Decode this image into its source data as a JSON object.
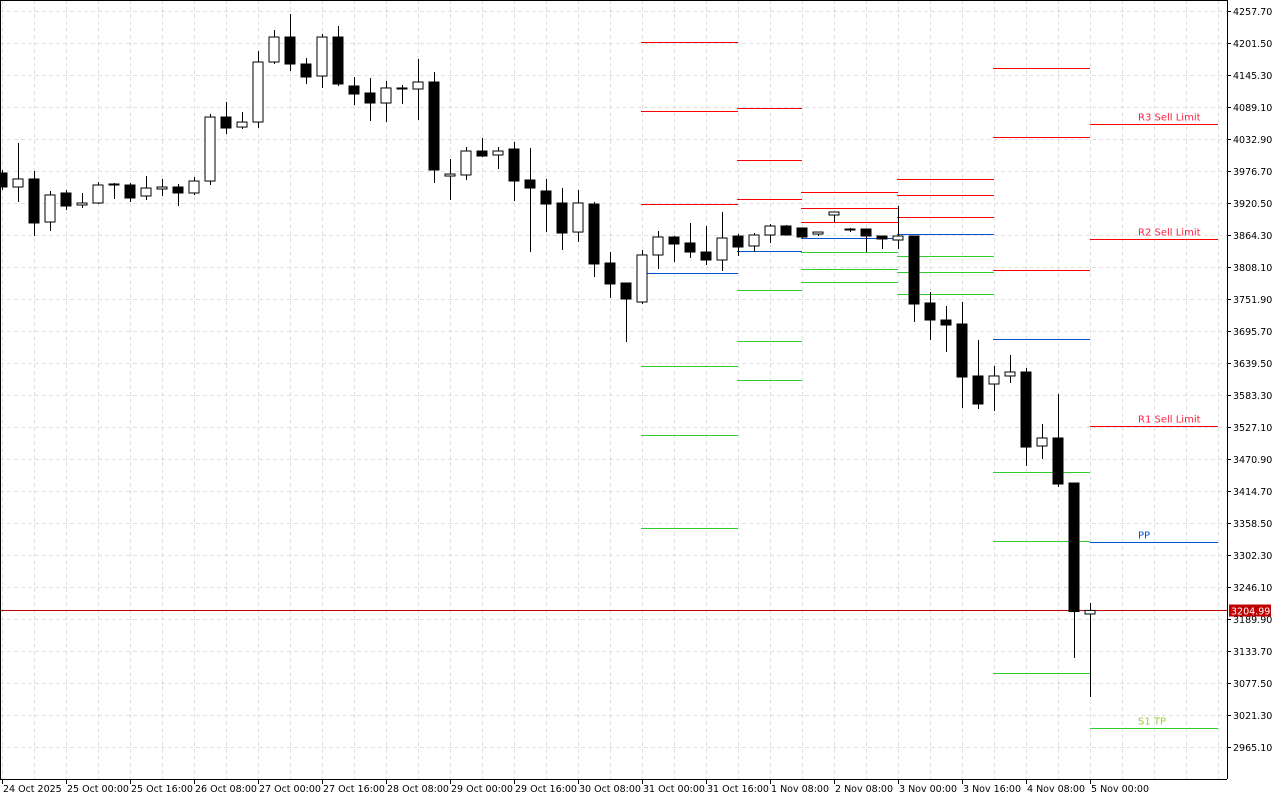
{
  "chart_data": {
    "type": "candlestick",
    "title": "",
    "xlabel": "",
    "ylabel": "",
    "ylim": [
      2908.9,
      4257.7
    ],
    "grid": true,
    "y_ticks": [
      "4257.70",
      "4201.50",
      "4145.30",
      "4089.10",
      "4032.90",
      "3976.70",
      "3920.50",
      "3864.30",
      "3808.10",
      "3751.90",
      "3695.70",
      "3639.50",
      "3583.30",
      "3527.10",
      "3470.90",
      "3414.70",
      "3358.50",
      "3302.30",
      "3246.10",
      "3189.90",
      "3133.70",
      "3077.50",
      "3021.30",
      "2965.10"
    ],
    "x_ticks": [
      "24 Oct 2025",
      "25 Oct 00:00",
      "25 Oct 16:00",
      "26 Oct 08:00",
      "27 Oct 00:00",
      "27 Oct 16:00",
      "28 Oct 08:00",
      "29 Oct 00:00",
      "29 Oct 16:00",
      "30 Oct 08:00",
      "31 Oct 00:00",
      "31 Oct 16:00",
      "1 Nov 08:00",
      "2 Nov 08:00",
      "3 Nov 00:00",
      "3 Nov 16:00",
      "4 Nov 08:00",
      "5 Nov 00:00"
    ],
    "candles_ohlc": [
      [
        3973.2,
        3978.5,
        3943.3,
        3948.6
      ],
      [
        3948.6,
        4025.9,
        3922.3,
        3962.7
      ],
      [
        3962.7,
        3976.7,
        3862.5,
        3885.4
      ],
      [
        3887.1,
        3941.6,
        3871.3,
        3934.6
      ],
      [
        3938.1,
        3943.3,
        3908.2,
        3915.2
      ],
      [
        3917.0,
        3938.1,
        3911.7,
        3920.5
      ],
      [
        3920.5,
        3957.4,
        3918.7,
        3952.1
      ],
      [
        3952.1,
        3955.6,
        3927.5,
        3953.9
      ],
      [
        3952.1,
        3955.6,
        3922.3,
        3929.3
      ],
      [
        3932.8,
        3967.9,
        3925.8,
        3946.8
      ],
      [
        3945.1,
        3962.7,
        3932.8,
        3948.6
      ],
      [
        3948.6,
        3953.9,
        3915.2,
        3938.1
      ],
      [
        3938.1,
        3966.2,
        3934.6,
        3959.1
      ],
      [
        3959.1,
        4076.8,
        3952.1,
        4071.5
      ],
      [
        4071.5,
        4097.9,
        4041.7,
        4052.2
      ],
      [
        4053.9,
        4080.3,
        4050.4,
        4062.7
      ],
      [
        4062.7,
        4187.5,
        4052.2,
        4168.1
      ],
      [
        4168.1,
        4224.3,
        4164.6,
        4212.0
      ],
      [
        4212.0,
        4252.4,
        4152.3,
        4164.6
      ],
      [
        4164.6,
        4175.2,
        4129.5,
        4141.8
      ],
      [
        4143.5,
        4217.3,
        4122.5,
        4212.0
      ],
      [
        4212.0,
        4231.4,
        4126.0,
        4129.5
      ],
      [
        4126.0,
        4141.8,
        4092.6,
        4111.9
      ],
      [
        4113.7,
        4140.0,
        4064.5,
        4096.1
      ],
      [
        4096.1,
        4134.8,
        4062.7,
        4122.5
      ],
      [
        4122.5,
        4127.7,
        4094.4,
        4120.7
      ],
      [
        4120.7,
        4173.4,
        4066.3,
        4133.0
      ],
      [
        4133.0,
        4150.5,
        3955.6,
        3978.5
      ],
      [
        3967.9,
        3997.8,
        3925.8,
        3971.4
      ],
      [
        3969.7,
        4018.9,
        3960.9,
        4011.8
      ],
      [
        4011.8,
        4034.7,
        4001.3,
        4003.0
      ],
      [
        4004.8,
        4018.9,
        3980.2,
        4011.8
      ],
      [
        4015.3,
        4027.6,
        3924.0,
        3959.1
      ],
      [
        3960.9,
        4017.1,
        3834.4,
        3946.8
      ],
      [
        3941.6,
        3962.7,
        3869.5,
        3918.7
      ],
      [
        3920.5,
        3946.8,
        3837.9,
        3867.8
      ],
      [
        3869.5,
        3943.3,
        3852.0,
        3920.5
      ],
      [
        3918.7,
        3922.3,
        3790.5,
        3813.4
      ],
      [
        3815.1,
        3834.4,
        3753.6,
        3778.3
      ],
      [
        3780.0,
        3780.0,
        3676.4,
        3751.9
      ],
      [
        3746.6,
        3837.9,
        3743.1,
        3829.2
      ],
      [
        3829.2,
        3871.3,
        3804.6,
        3860.8
      ],
      [
        3860.8,
        3862.5,
        3816.9,
        3848.5
      ],
      [
        3850.3,
        3885.4,
        3823.9,
        3834.4
      ],
      [
        3834.4,
        3880.1,
        3811.6,
        3820.4
      ],
      [
        3820.4,
        3904.7,
        3801.1,
        3859.0
      ],
      [
        3862.5,
        3866.0,
        3827.4,
        3843.2
      ],
      [
        3845.0,
        3867.8,
        3834.4,
        3864.3
      ],
      [
        3864.3,
        3883.6,
        3850.3,
        3880.1
      ],
      [
        3880.1,
        3881.9,
        3864.3,
        3864.3
      ],
      [
        3876.6,
        3876.6,
        3859.0,
        3860.8
      ],
      [
        3866.0,
        3869.5,
        3862.5,
        3869.5
      ],
      [
        3899.4,
        3904.7,
        3887.1,
        3904.7
      ],
      [
        3874.8,
        3876.6,
        3869.5,
        3873.1
      ],
      [
        3874.8,
        3874.8,
        3834.4,
        3862.5
      ],
      [
        3862.5,
        3862.5,
        3839.7,
        3857.3
      ],
      [
        3855.5,
        3915.2,
        3839.7,
        3862.5
      ],
      [
        3862.5,
        3862.5,
        3711.5,
        3743.1
      ],
      [
        3744.9,
        3764.3,
        3679.9,
        3715.0
      ],
      [
        3715.0,
        3739.6,
        3658.8,
        3706.2
      ],
      [
        3708.0,
        3746.6,
        3560.5,
        3614.9
      ],
      [
        3616.7,
        3679.9,
        3558.7,
        3567.5
      ],
      [
        3602.6,
        3634.2,
        3555.2,
        3616.7
      ],
      [
        3616.7,
        3653.6,
        3604.4,
        3623.7
      ],
      [
        3623.7,
        3630.7,
        3458.6,
        3491.9
      ],
      [
        3493.7,
        3532.4,
        3470.9,
        3507.8
      ],
      [
        3507.8,
        3585.0,
        3421.7,
        3427.0
      ],
      [
        3428.7,
        3428.7,
        3121.4,
        3203.0
      ],
      [
        3198.7,
        3218.0,
        3052.9,
        3204.99
      ]
    ],
    "pivot_segments": [
      {
        "from_candle": 40,
        "to_candle": 46,
        "levels": [
          4203.3,
          4082.1,
          3918.7,
          3797.6,
          3634.2,
          3513.1,
          3349.7
        ]
      },
      {
        "from_candle": 46,
        "to_candle": 50,
        "levels": [
          4087.4,
          3996.0,
          3927.5,
          3836.2,
          3767.7,
          3678.1,
          3609.6
        ]
      },
      {
        "from_candle": 50,
        "to_candle": 56,
        "levels": [
          3939.8,
          3911.7,
          3887.1,
          3859.0,
          3834.4,
          3804.6,
          3781.8
        ]
      },
      {
        "from_candle": 56,
        "to_candle": 62,
        "levels": [
          3962.7,
          3934.6,
          3895.9,
          3866.0,
          3827.4,
          3799.3,
          3760.7
        ]
      },
      {
        "from_candle": 62,
        "to_candle": 68,
        "levels": [
          4157.6,
          4036.4,
          3802.8,
          3681.6,
          3448.1,
          3326.9,
          3095.2
        ]
      }
    ],
    "pivot_level_colors": [
      "#ff0000",
      "#ff0000",
      "#ff0000",
      "#0050d0",
      "#32cd32",
      "#32cd32",
      "#32cd32"
    ],
    "current_levels": {
      "from_candle": 68,
      "to_candle": 76,
      "items": [
        {
          "label": "R3 Sell Limit",
          "value": 4059.2,
          "color": "#ff0000"
        },
        {
          "label": "R2 Sell Limit",
          "value": 3857.3,
          "color": "#ff0000"
        },
        {
          "label": "R1 Sell Limit",
          "value": 3528.9,
          "color": "#ff0000"
        },
        {
          "label": "PP",
          "value": 3325.1,
          "color": "#0050d0"
        },
        {
          "label": "S1 TP",
          "value": 2998.5,
          "color": "#32cd32"
        }
      ]
    },
    "current_price": {
      "value": 3204.99,
      "label": "3204.99",
      "color": "#c00000"
    },
    "colors": {
      "bull_body": "#ffffff",
      "bear_body": "#000000",
      "wick": "#000000",
      "grid": "#e0e0e0",
      "label_text": "#ff2040",
      "s1_label_text": "#9acd32"
    }
  }
}
